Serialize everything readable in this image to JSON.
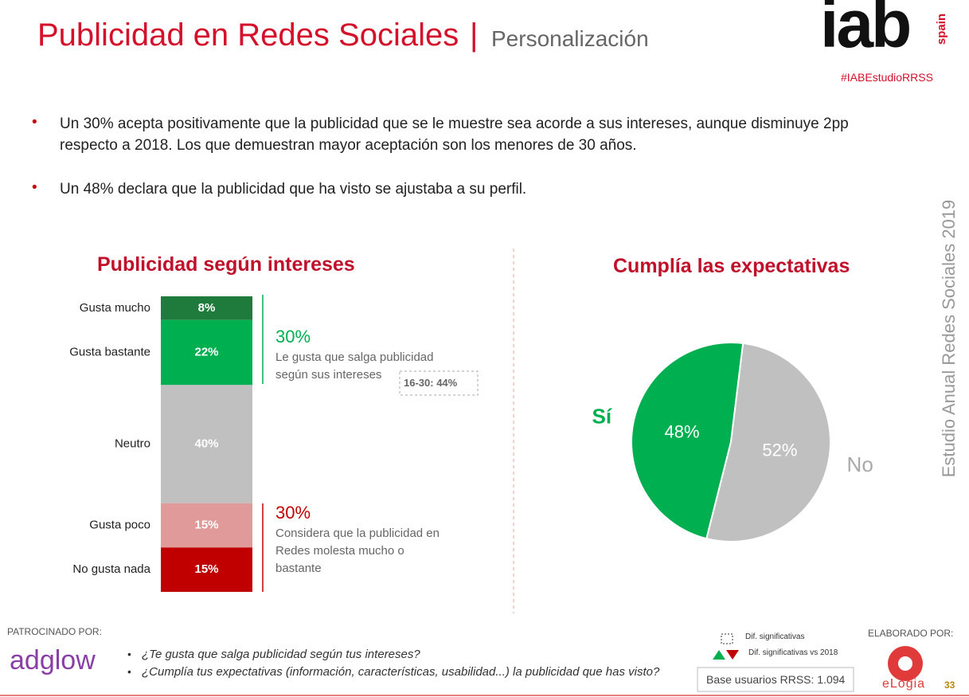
{
  "header": {
    "title": "Publicidad en Redes Sociales",
    "separator": "|",
    "subtitle": "Personalización",
    "logo": "iab",
    "logo_sub": "spain",
    "hashtag": "#IABEstudioRRSS"
  },
  "bullets": [
    "Un 30% acepta positivamente que la publicidad que se le muestre sea acorde a sus intereses, aunque disminuye 2pp respecto a 2018. Los que demuestran mayor aceptación son los menores de 30 años.",
    "Un 48% declara que la publicidad que ha visto se ajustaba a su perfil."
  ],
  "side_text": "Estudio Anual Redes Sociales 2019",
  "chart_data": [
    {
      "type": "stacked-bar",
      "title": "Publicidad según intereses",
      "categories": [
        "Gusta mucho",
        "Gusta bastante",
        "Neutro",
        "Gusta poco",
        "No gusta nada"
      ],
      "values": [
        8,
        22,
        40,
        15,
        15
      ],
      "value_labels": [
        "8%",
        "22%",
        "40%",
        "15%",
        "15%"
      ],
      "colors": [
        "#1e7b3c",
        "#00b050",
        "#c0c0c0",
        "#e09a9a",
        "#c00000"
      ],
      "annotations": [
        {
          "value": "30%",
          "text": "Le gusta que salga publicidad según sus intereses",
          "color": "#00b050",
          "note": "16-30: 44%"
        },
        {
          "value": "30%",
          "text": "Considera que la publicidad en Redes molesta mucho o bastante",
          "color": "#c00000"
        }
      ]
    },
    {
      "type": "pie",
      "title": "Cumplía las expectativas",
      "categories": [
        "Sí",
        "No"
      ],
      "values": [
        48,
        52
      ],
      "value_labels": [
        "48%",
        "52%"
      ],
      "colors": [
        "#00b050",
        "#c0c0c0"
      ]
    }
  ],
  "footer": {
    "sponsor_label": "PATROCINADO POR:",
    "sponsor": "adglow",
    "questions": [
      "¿Te gusta que salga publicidad según tus intereses?",
      "¿Cumplía tus expectativas (información, características, usabilidad...) la publicidad que has visto?"
    ],
    "legend": [
      "Dif. significativas",
      "Dif. significativas vs 2018"
    ],
    "base": "Base usuarios RRSS: 1.094",
    "made_by_label": "ELABORADO POR:",
    "made_by": "eLogia",
    "page": "33"
  }
}
